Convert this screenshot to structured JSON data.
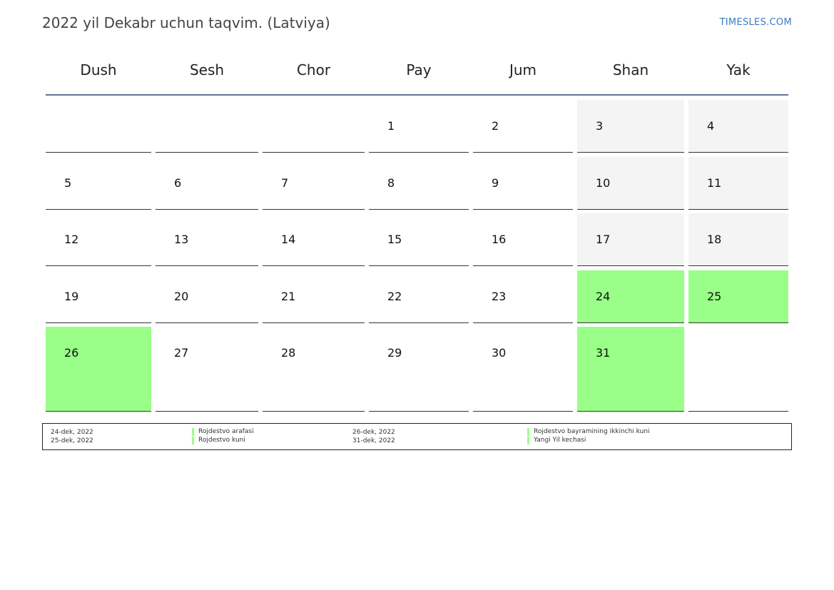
{
  "header": {
    "title": "2022 yil Dekabr uchun taqvim. (Latviya)",
    "site": "TIMESLES.COM"
  },
  "weekdays": [
    "Dush",
    "Sesh",
    "Chor",
    "Pay",
    "Jum",
    "Shan",
    "Yak"
  ],
  "calendar": {
    "weeks": [
      [
        {
          "day": ""
        },
        {
          "day": ""
        },
        {
          "day": ""
        },
        {
          "day": "1"
        },
        {
          "day": "2"
        },
        {
          "day": "3",
          "type": "weekend"
        },
        {
          "day": "4",
          "type": "weekend"
        }
      ],
      [
        {
          "day": "5"
        },
        {
          "day": "6"
        },
        {
          "day": "7"
        },
        {
          "day": "8"
        },
        {
          "day": "9"
        },
        {
          "day": "10",
          "type": "weekend"
        },
        {
          "day": "11",
          "type": "weekend"
        }
      ],
      [
        {
          "day": "12"
        },
        {
          "day": "13"
        },
        {
          "day": "14"
        },
        {
          "day": "15"
        },
        {
          "day": "16"
        },
        {
          "day": "17",
          "type": "weekend"
        },
        {
          "day": "18",
          "type": "weekend"
        }
      ],
      [
        {
          "day": "19"
        },
        {
          "day": "20"
        },
        {
          "day": "21"
        },
        {
          "day": "22"
        },
        {
          "day": "23"
        },
        {
          "day": "24",
          "type": "holiday"
        },
        {
          "day": "25",
          "type": "holiday"
        }
      ],
      [
        {
          "day": "26",
          "type": "holiday"
        },
        {
          "day": "27"
        },
        {
          "day": "28"
        },
        {
          "day": "29"
        },
        {
          "day": "30"
        },
        {
          "day": "31",
          "type": "holiday"
        },
        {
          "day": ""
        }
      ]
    ]
  },
  "holidays": [
    {
      "date": "24-dek, 2022",
      "name": "Rojdestvo arafasi"
    },
    {
      "date": "25-dek, 2022",
      "name": "Rojdestvo kuni"
    },
    {
      "date": "26-dek, 2022",
      "name": "Rojdestvo bayramining ikkinchi kuni"
    },
    {
      "date": "31-dek, 2022",
      "name": "Yangi Yil kechasi"
    }
  ],
  "colors": {
    "holiday": "#99ff88",
    "weekend": "#f4f4f4",
    "header_rule": "#5a7596",
    "link": "#3a7bbf"
  }
}
